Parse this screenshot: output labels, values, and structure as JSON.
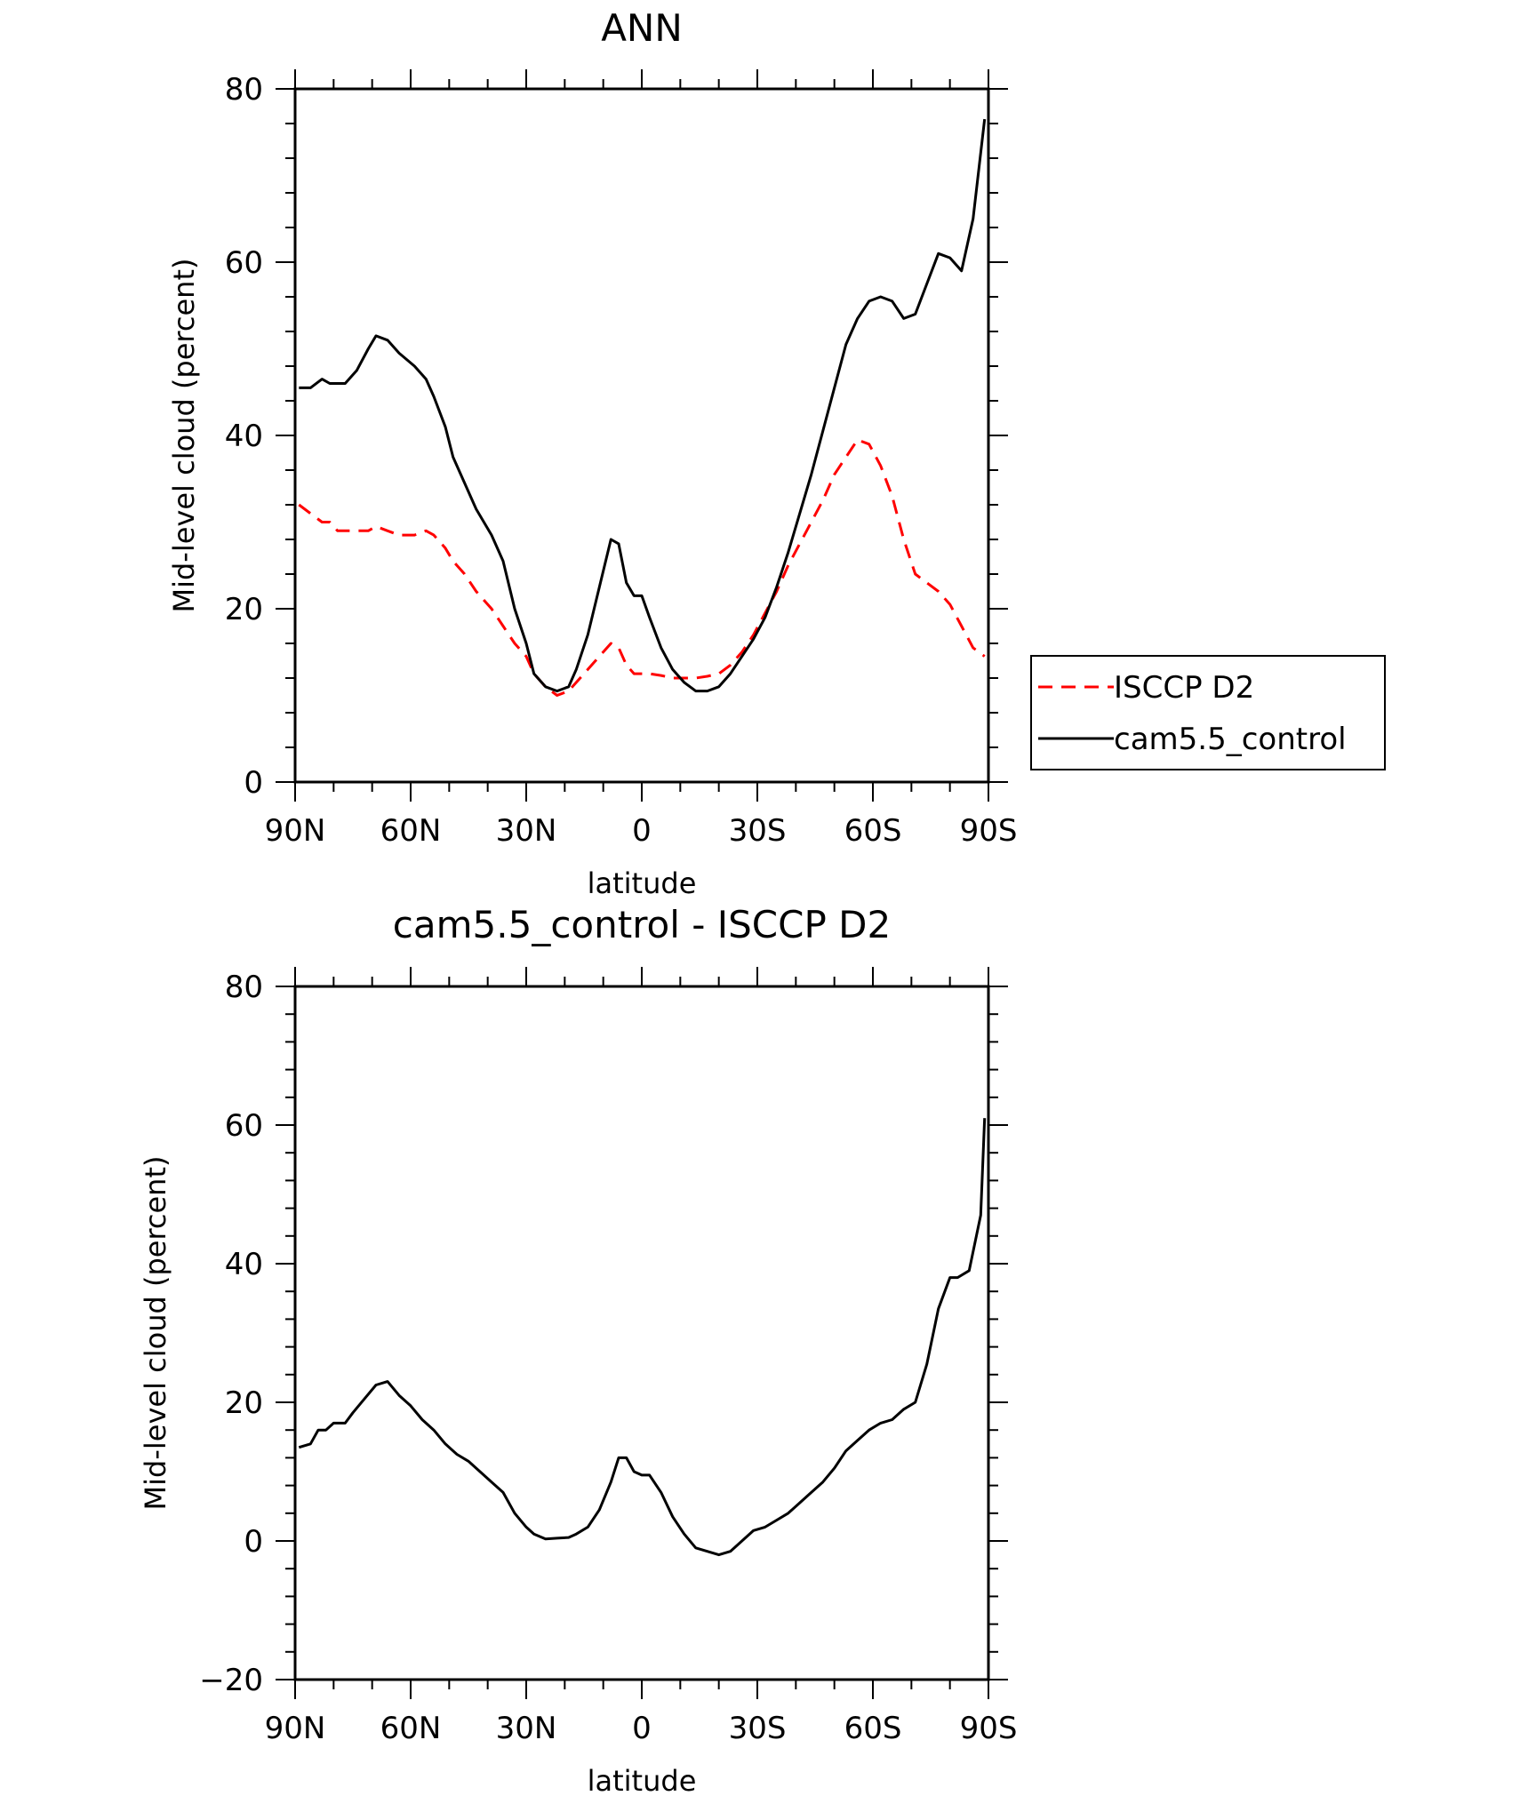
{
  "chart_data": [
    {
      "type": "line",
      "title": "ANN",
      "xlabel": "latitude",
      "ylabel": "Mid-level cloud (percent)",
      "xlim": [
        90,
        -90
      ],
      "ylim": [
        0,
        80
      ],
      "xticks": [
        90,
        60,
        30,
        0,
        -30,
        -60,
        -90
      ],
      "xtick_labels": [
        "90N",
        "60N",
        "30N",
        "0",
        "30S",
        "60S",
        "90S"
      ],
      "yticks": [
        0,
        20,
        40,
        60,
        80
      ],
      "ytick_labels": [
        "0",
        "20",
        "40",
        "60",
        "80"
      ],
      "grid": false,
      "legend": "outside-right",
      "series": [
        {
          "name": "ISCCP D2",
          "color": "#ff0000",
          "dash": true,
          "x": [
            89,
            86,
            83,
            81,
            79,
            77,
            74,
            71,
            69,
            66,
            63,
            59,
            56,
            54,
            51,
            49,
            46,
            43,
            39,
            36,
            33,
            30,
            28,
            25,
            22,
            19,
            17,
            14,
            11,
            8,
            6,
            4,
            2,
            0,
            -2,
            -5,
            -8,
            -11,
            -14,
            -17,
            -20,
            -23,
            -26,
            -29,
            -32,
            -35,
            -38,
            -41,
            -44,
            -47,
            -50,
            -53,
            -56,
            -59,
            -62,
            -65,
            -68,
            -71,
            -74,
            -77,
            -80,
            -83,
            -86,
            -89
          ],
          "y": [
            32,
            31,
            30,
            30,
            29,
            29,
            29,
            29,
            29.5,
            29,
            28.5,
            28.5,
            29,
            28.5,
            27,
            25.5,
            24,
            22,
            20,
            18,
            16,
            14.5,
            12.5,
            11,
            10,
            10.5,
            11.5,
            13,
            14.5,
            16,
            15.5,
            13.5,
            12.5,
            12.5,
            12.5,
            12.3,
            12,
            12,
            12,
            12.2,
            12.5,
            13.5,
            15,
            17,
            19.5,
            22,
            25,
            27.5,
            30,
            32.5,
            35.5,
            37.5,
            39.5,
            39,
            36.5,
            33,
            28,
            24,
            23,
            22,
            20.5,
            18,
            15.5,
            14.5
          ]
        },
        {
          "name": "cam5.5_control",
          "color": "#000000",
          "dash": false,
          "x": [
            89,
            86,
            83,
            81,
            79,
            77,
            74,
            71,
            69,
            66,
            63,
            59,
            56,
            54,
            51,
            49,
            46,
            43,
            39,
            36,
            33,
            30,
            28,
            25,
            22,
            19,
            17,
            14,
            11,
            8,
            6,
            4,
            2,
            0,
            -2,
            -5,
            -8,
            -11,
            -14,
            -17,
            -20,
            -23,
            -26,
            -29,
            -32,
            -35,
            -38,
            -41,
            -44,
            -47,
            -50,
            -53,
            -56,
            -59,
            -62,
            -65,
            -68,
            -71,
            -74,
            -77,
            -80,
            -83,
            -86,
            -89
          ],
          "y": [
            45.5,
            45.5,
            46.5,
            46,
            46,
            46,
            47.5,
            50,
            51.5,
            51,
            49.5,
            48,
            46.5,
            44.5,
            41,
            37.5,
            34.5,
            31.5,
            28.5,
            25.5,
            20,
            16,
            12.5,
            11,
            10.5,
            11,
            13,
            17,
            22.5,
            28,
            27.5,
            23,
            21.5,
            21.5,
            19,
            15.5,
            13,
            11.5,
            10.5,
            10.5,
            11,
            12.5,
            14.5,
            16.5,
            19,
            22.5,
            26.5,
            31,
            35.5,
            40.5,
            45.5,
            50.5,
            53.5,
            55.5,
            56,
            55.5,
            53.5,
            54,
            57.5,
            61,
            60.5,
            59,
            65,
            76.5
          ]
        }
      ]
    },
    {
      "type": "line",
      "title": "cam5.5_control - ISCCP D2",
      "xlabel": "latitude",
      "ylabel": "Mid-level cloud (percent)",
      "xlim": [
        90,
        -90
      ],
      "ylim": [
        -20,
        80
      ],
      "xticks": [
        90,
        60,
        30,
        0,
        -30,
        -60,
        -90
      ],
      "xtick_labels": [
        "90N",
        "60N",
        "30N",
        "0",
        "30S",
        "60S",
        "90S"
      ],
      "yticks": [
        -20,
        0,
        20,
        40,
        60,
        80
      ],
      "ytick_labels": [
        "−20",
        "0",
        "20",
        "40",
        "60",
        "80"
      ],
      "grid": false,
      "legend": "none",
      "series": [
        {
          "color": "#000000",
          "dash": false,
          "x": [
            89,
            86,
            84,
            82,
            80,
            77,
            75,
            72,
            69,
            66,
            63,
            60,
            57,
            54,
            51,
            48,
            45,
            42,
            39,
            36,
            33,
            30,
            28,
            25,
            22,
            19,
            17,
            14,
            11,
            8,
            6,
            4,
            2,
            0,
            -2,
            -5,
            -8,
            -11,
            -14,
            -17,
            -20,
            -23,
            -26,
            -29,
            -32,
            -35,
            -38,
            -41,
            -44,
            -47,
            -50,
            -53,
            -56,
            -59,
            -62,
            -65,
            -68,
            -71,
            -74,
            -77,
            -80,
            -82,
            -85,
            -88,
            -89
          ],
          "y": [
            13.5,
            14,
            16,
            16,
            17,
            17,
            18.5,
            20.5,
            22.5,
            23,
            21,
            19.5,
            17.5,
            16,
            14,
            12.5,
            11.5,
            10,
            8.5,
            7,
            4,
            2,
            1,
            0.3,
            0.4,
            0.5,
            1,
            2,
            4.5,
            8.5,
            12,
            12,
            10,
            9.5,
            9.5,
            7,
            3.5,
            1,
            -1,
            -1.5,
            -2,
            -1.5,
            0,
            1.5,
            2,
            3,
            4,
            5.5,
            7,
            8.5,
            10.5,
            13,
            14.5,
            16,
            17,
            17.5,
            19,
            20,
            25.5,
            33.5,
            38,
            38,
            39,
            47,
            61
          ]
        }
      ]
    }
  ]
}
